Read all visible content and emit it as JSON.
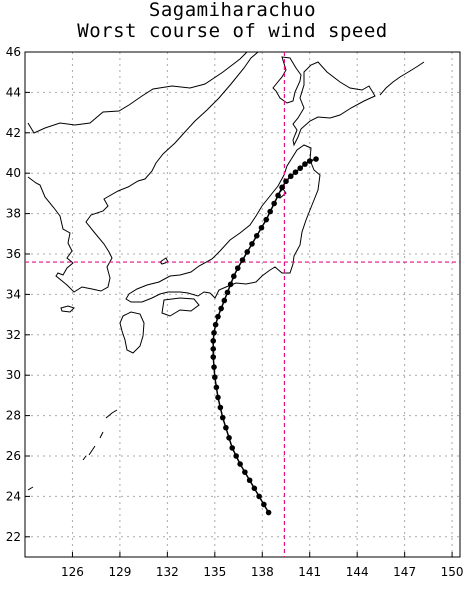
{
  "title": "Sagamiharachuo",
  "subtitle": "Worst course of wind speed",
  "map": {
    "lon_range": [
      123,
      150.5
    ],
    "lat_range": [
      21,
      46
    ],
    "lon_ticks": [
      126,
      129,
      132,
      135,
      138,
      141,
      144,
      147,
      150
    ],
    "lat_ticks": [
      22,
      24,
      26,
      28,
      30,
      32,
      34,
      36,
      38,
      40,
      42,
      44,
      46
    ],
    "grid": true,
    "grid_color": "#aaaaaa",
    "crosshair_color": "#e0118a",
    "coast_color": "#000000",
    "track_color": "#000000",
    "target": {
      "name": "Sagamiharachuo",
      "lon": 139.4,
      "lat": 35.6
    }
  },
  "chart_data": {
    "type": "scatter",
    "title": "Sagamiharachuo",
    "subtitle": "Worst course of wind speed",
    "xlabel": "",
    "ylabel": "",
    "xlim": [
      123,
      150.5
    ],
    "ylim": [
      21,
      46
    ],
    "grid": true,
    "series": [
      {
        "x": [
          138.4,
          138.1,
          137.8,
          137.5,
          137.2,
          136.9,
          136.6,
          136.35,
          136.1,
          135.9,
          135.7,
          135.5,
          135.35,
          135.2,
          135.1,
          135.0,
          134.95,
          134.9,
          134.9,
          134.9,
          134.95,
          135.05,
          135.2,
          135.4,
          135.6,
          135.8,
          136.0,
          136.2,
          136.45,
          136.75,
          137.05,
          137.35,
          137.65,
          137.95,
          138.25,
          138.5,
          138.75,
          139.0,
          139.25,
          139.5,
          139.8,
          140.1,
          140.4,
          140.7,
          141.0,
          141.4
        ],
        "y": [
          23.2,
          23.6,
          24.0,
          24.4,
          24.8,
          25.2,
          25.6,
          26.0,
          26.4,
          26.9,
          27.4,
          27.9,
          28.4,
          28.9,
          29.4,
          29.9,
          30.4,
          30.9,
          31.3,
          31.7,
          32.1,
          32.5,
          32.9,
          33.3,
          33.7,
          34.1,
          34.5,
          34.9,
          35.3,
          35.7,
          36.1,
          36.5,
          36.9,
          37.3,
          37.7,
          38.1,
          38.5,
          38.9,
          39.3,
          39.6,
          39.85,
          40.05,
          40.25,
          40.45,
          40.6,
          40.7
        ]
      }
    ]
  }
}
